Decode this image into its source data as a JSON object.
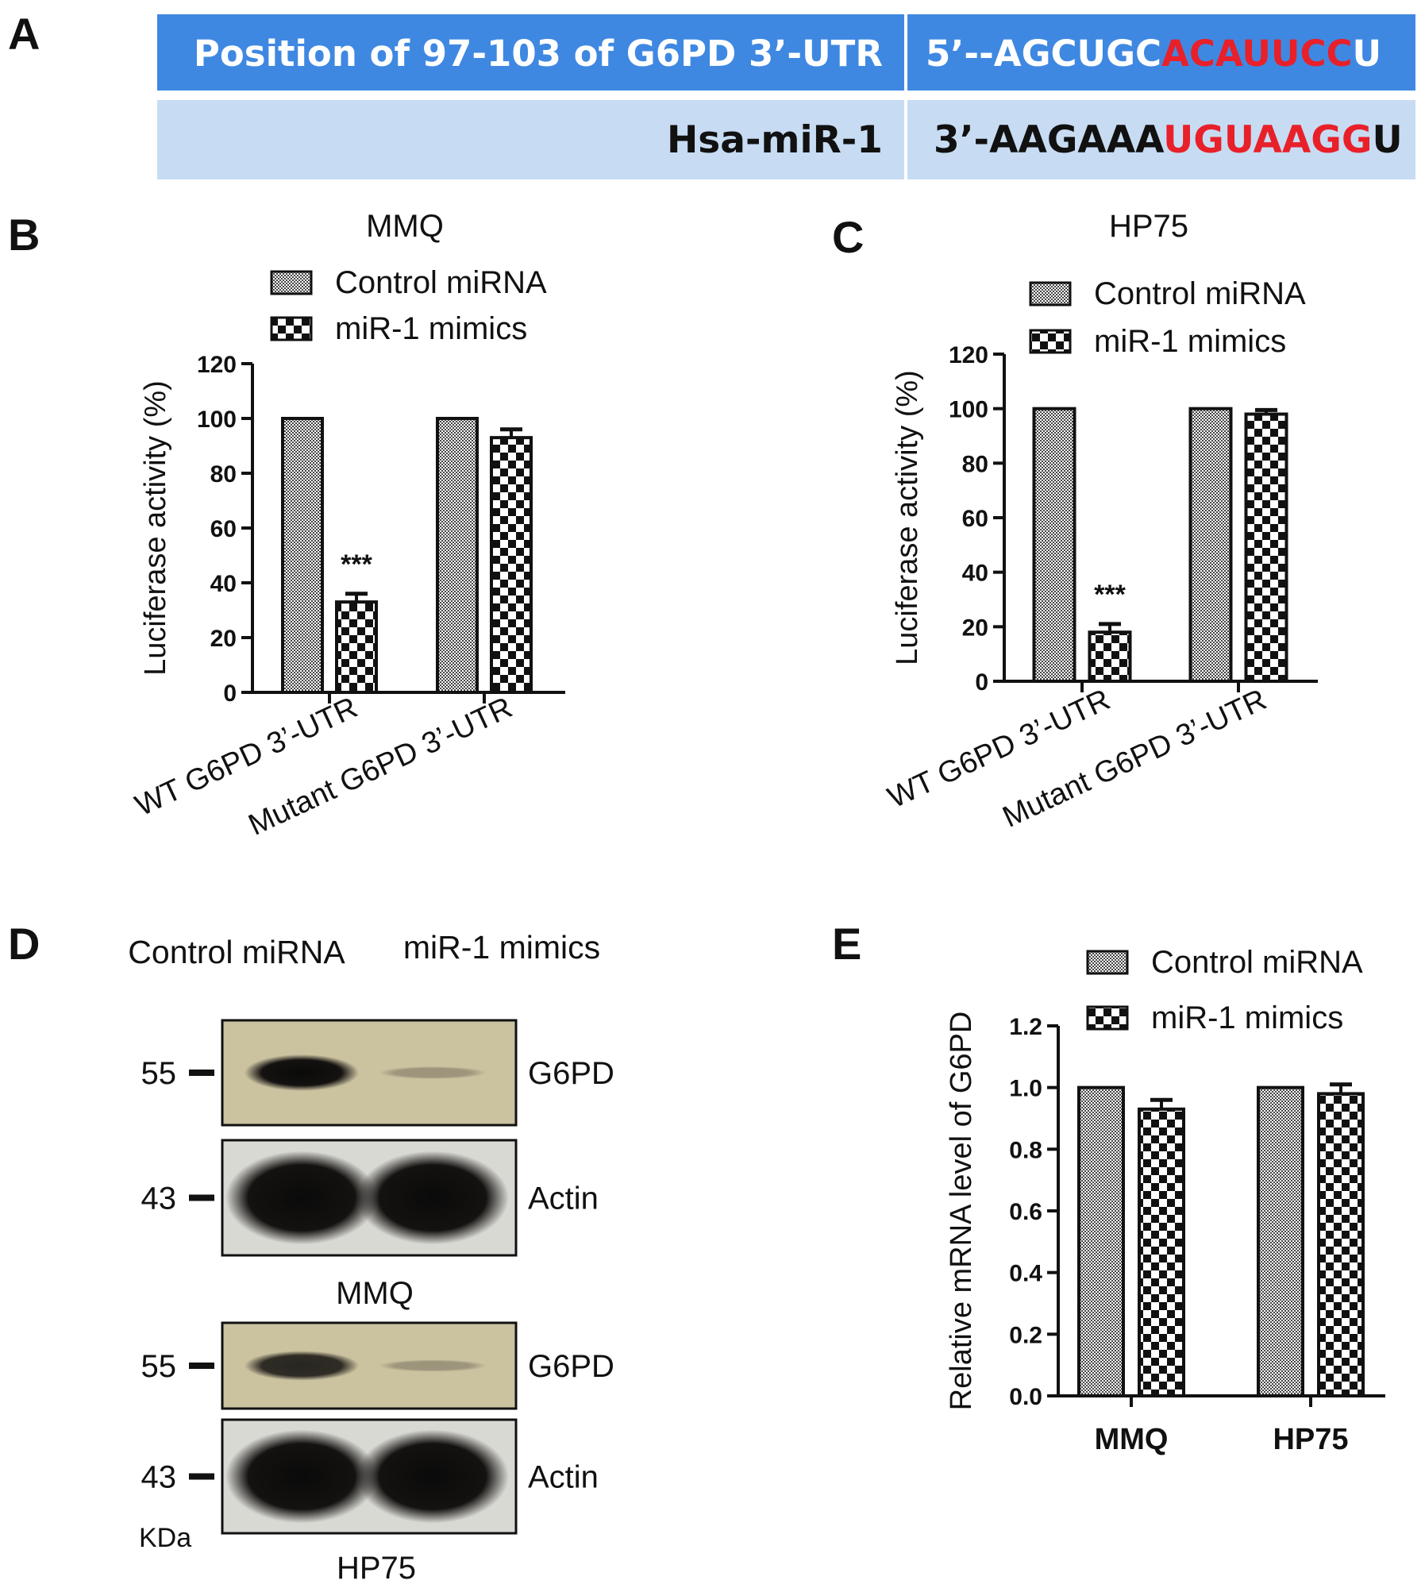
{
  "panel_letters": {
    "a": "A",
    "b": "B",
    "c": "C",
    "d": "D",
    "e": "E"
  },
  "panel_a": {
    "row1_label": "Position of 97-103 of G6PD 3’-UTR",
    "row1_seq": {
      "prefix": "5’--AGCUGC",
      "seed": "ACAUUCC",
      "suffix": "U"
    },
    "row2_label": "Hsa-miR-1",
    "row2_seq": {
      "prefix": "3’-AAGAAA",
      "seed": "UGUAAGG",
      "suffix": "U"
    },
    "colors": {
      "row1_bg": "#3f88e2",
      "row2_bg": "#c7dcf2",
      "seed": "#e8202a",
      "row1_text": "#ffffff",
      "row2_text": "#111111"
    }
  },
  "legend": {
    "control": "Control miRNA",
    "mimics": "miR-1 mimics"
  },
  "chart_data": [
    {
      "id": "B",
      "type": "bar",
      "title": "MMQ",
      "ylabel": "Luciferase activity (%)",
      "ylim": [
        0,
        120
      ],
      "yticks": [
        "0",
        "20",
        "40",
        "60",
        "80",
        "100",
        "120"
      ],
      "categories": [
        "WT G6PD 3’-UTR",
        "Mutant G6PD 3’-UTR"
      ],
      "series": [
        {
          "name": "Control miRNA",
          "values": [
            100,
            100
          ],
          "errors": [
            0,
            0
          ]
        },
        {
          "name": "miR-1 mimics",
          "values": [
            33,
            93
          ],
          "errors": [
            3,
            3
          ]
        }
      ],
      "annotations": [
        {
          "category": 0,
          "series": 1,
          "text": "***"
        }
      ],
      "legend_position": "top"
    },
    {
      "id": "C",
      "type": "bar",
      "title": "HP75",
      "ylabel": "Luciferase activity (%)",
      "ylim": [
        0,
        120
      ],
      "yticks": [
        "0",
        "20",
        "40",
        "60",
        "80",
        "100",
        "120"
      ],
      "categories": [
        "WT G6PD 3’-UTR",
        "Mutant G6PD 3’-UTR"
      ],
      "series": [
        {
          "name": "Control miRNA",
          "values": [
            100,
            100
          ],
          "errors": [
            0,
            0
          ]
        },
        {
          "name": "miR-1 mimics",
          "values": [
            18,
            98
          ],
          "errors": [
            3,
            1.5
          ]
        }
      ],
      "annotations": [
        {
          "category": 0,
          "series": 1,
          "text": "***"
        }
      ],
      "legend_position": "top"
    },
    {
      "id": "E",
      "type": "bar",
      "title": "",
      "ylabel": "Relative mRNA level of G6PD",
      "ylim": [
        0,
        1.2
      ],
      "yticks": [
        "0.0",
        "0.2",
        "0.4",
        "0.6",
        "0.8",
        "1.0",
        "1.2"
      ],
      "categories": [
        "MMQ",
        "HP75"
      ],
      "series": [
        {
          "name": "Control miRNA",
          "values": [
            1.0,
            1.0
          ],
          "errors": [
            0,
            0
          ]
        },
        {
          "name": "miR-1 mimics",
          "values": [
            0.93,
            0.98
          ],
          "errors": [
            0.03,
            0.03
          ]
        }
      ],
      "annotations": [],
      "legend_position": "top"
    }
  ],
  "panel_d": {
    "col_labels": [
      "Control miRNA",
      "miR-1 mimics"
    ],
    "blots": [
      {
        "marker": "55",
        "label": "G6PD",
        "intensity": [
          1.0,
          0.2
        ]
      },
      {
        "marker": "43",
        "label": "Actin",
        "intensity": [
          1.0,
          1.0
        ]
      },
      {
        "marker": "55",
        "label": "G6PD",
        "intensity": [
          0.85,
          0.25
        ]
      },
      {
        "marker": "43",
        "label": "Actin",
        "intensity": [
          1.0,
          1.0
        ]
      }
    ],
    "cell_labels": [
      "MMQ",
      "HP75"
    ],
    "unit": "KDa"
  }
}
